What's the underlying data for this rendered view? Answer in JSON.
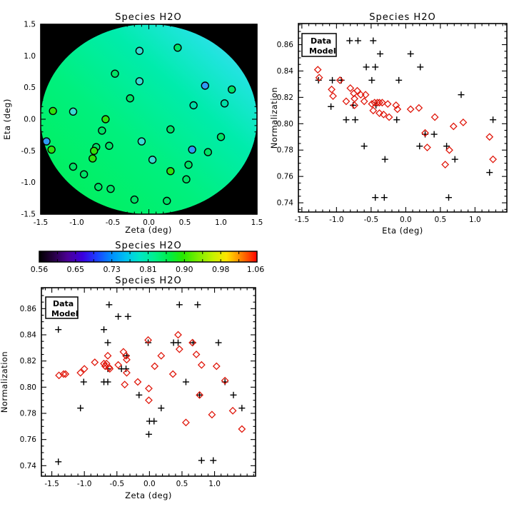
{
  "page": {
    "background": "#ffffff",
    "frame_color": "#000000"
  },
  "palette": {
    "g": "#00E366",
    "b": "#2FE10E",
    "t": "#00DFA8",
    "c": "#3ADBD2",
    "u": "#2E9CF5"
  },
  "chart_data": [
    {
      "type": "scatter",
      "subtype": "sky-map",
      "title": "Species H2O",
      "xlabel": "Zeta (deg)",
      "ylabel": "Eta (deg)",
      "xlim": [
        -1.5,
        1.5
      ],
      "ylim": [
        -1.5,
        1.5
      ],
      "xticks": [
        -1.5,
        -1.0,
        -0.5,
        0.0,
        0.5,
        1.0,
        1.5
      ],
      "yticks": [
        -1.5,
        -1.0,
        -0.5,
        0.0,
        0.5,
        1.0,
        1.5
      ],
      "xtick_labels": [
        "-1.5",
        "-1.0",
        "-0.5",
        "0.0",
        "0.5",
        "1.0",
        "1.5"
      ],
      "ytick_labels": [
        "-1.5",
        "-1.0",
        "-0.5",
        "0.0",
        "0.5",
        "1.0",
        "1.5"
      ],
      "minor_step": 0.1,
      "grid": false,
      "background": "#000000",
      "disk": {
        "cx": 0.0,
        "cy": 0.0,
        "radius": 1.5,
        "gradient_direction": "to-top-right",
        "gradient": [
          {
            "o": 0.0,
            "c": "#02EF52"
          },
          {
            "o": 0.4,
            "c": "#00F07E"
          },
          {
            "o": 0.65,
            "c": "#00ECAC"
          },
          {
            "o": 0.82,
            "c": "#1FE4DC"
          },
          {
            "o": 0.93,
            "c": "#45D9EE"
          },
          {
            "o": 1.0,
            "c": "#5FD0F8"
          }
        ]
      },
      "points": [
        [
          -0.13,
          1.08,
          "c"
        ],
        [
          0.4,
          1.13,
          "g"
        ],
        [
          -0.47,
          0.72,
          "g"
        ],
        [
          -0.13,
          0.6,
          "c"
        ],
        [
          -0.26,
          0.33,
          "g"
        ],
        [
          0.78,
          0.53,
          "u"
        ],
        [
          1.15,
          0.47,
          "g"
        ],
        [
          0.62,
          0.22,
          "t"
        ],
        [
          1.05,
          0.25,
          "t"
        ],
        [
          -1.33,
          0.13,
          "b"
        ],
        [
          -1.05,
          0.12,
          "c"
        ],
        [
          -0.6,
          0.0,
          "b"
        ],
        [
          -0.65,
          -0.18,
          "g"
        ],
        [
          0.3,
          -0.16,
          "g"
        ],
        [
          1.0,
          -0.28,
          "g"
        ],
        [
          -1.42,
          -0.35,
          "u"
        ],
        [
          -0.1,
          -0.35,
          "c"
        ],
        [
          -0.55,
          -0.42,
          "g"
        ],
        [
          -0.73,
          -0.44,
          "g"
        ],
        [
          -0.76,
          -0.5,
          "b"
        ],
        [
          -1.35,
          -0.48,
          "b"
        ],
        [
          0.6,
          -0.48,
          "u"
        ],
        [
          0.82,
          -0.52,
          "g"
        ],
        [
          -0.78,
          -0.62,
          "b"
        ],
        [
          0.05,
          -0.64,
          "c"
        ],
        [
          -1.05,
          -0.75,
          "g"
        ],
        [
          0.55,
          -0.72,
          "g"
        ],
        [
          -0.9,
          -0.87,
          "g"
        ],
        [
          0.3,
          -0.82,
          "b"
        ],
        [
          0.52,
          -0.95,
          "g"
        ],
        [
          -0.7,
          -1.07,
          "g"
        ],
        [
          -0.53,
          -1.1,
          "g"
        ],
        [
          -0.2,
          -1.27,
          "g"
        ],
        [
          0.25,
          -1.29,
          "g"
        ]
      ]
    },
    {
      "type": "scatter",
      "title": "Species H2O",
      "xlabel": "Eta (deg)",
      "ylabel": "Normalization",
      "xlim": [
        -1.55,
        1.46
      ],
      "ylim": [
        0.733,
        0.876
      ],
      "xticks": [
        -1.5,
        -1.0,
        -0.5,
        0.0,
        0.5,
        1.0
      ],
      "yticks": [
        0.74,
        0.76,
        0.78,
        0.8,
        0.82,
        0.84,
        0.86
      ],
      "xtick_labels": [
        "-1.5",
        "-1.0",
        "-0.5",
        "0.0",
        "0.5",
        "1.0"
      ],
      "ytick_labels": [
        "0.74",
        "0.76",
        "0.78",
        "0.80",
        "0.82",
        "0.84",
        "0.86"
      ],
      "xminor_step": 0.1,
      "yminor_step": 0.005,
      "grid": false,
      "legend": {
        "position": "top-left"
      },
      "series": [
        {
          "name": "Data",
          "marker": "plus",
          "color": "#000000",
          "points": [
            [
              -0.81,
              0.863
            ],
            [
              -0.69,
              0.863
            ],
            [
              -0.47,
              0.863
            ],
            [
              -0.37,
              0.853
            ],
            [
              0.07,
              0.853
            ],
            [
              -0.57,
              0.843
            ],
            [
              -0.44,
              0.843
            ],
            [
              0.21,
              0.843
            ],
            [
              -1.26,
              0.833
            ],
            [
              -1.06,
              0.833
            ],
            [
              -0.93,
              0.833
            ],
            [
              -0.49,
              0.833
            ],
            [
              -0.1,
              0.833
            ],
            [
              -1.08,
              0.813
            ],
            [
              -0.76,
              0.814
            ],
            [
              -0.43,
              0.814
            ],
            [
              0.8,
              0.822
            ],
            [
              -0.86,
              0.803
            ],
            [
              -0.73,
              0.803
            ],
            [
              -0.13,
              0.803
            ],
            [
              1.26,
              0.803
            ],
            [
              0.28,
              0.792
            ],
            [
              0.41,
              0.792
            ],
            [
              -0.6,
              0.783
            ],
            [
              0.2,
              0.783
            ],
            [
              0.59,
              0.783
            ],
            [
              -0.3,
              0.773
            ],
            [
              0.71,
              0.773
            ],
            [
              1.21,
              0.763
            ],
            [
              -0.44,
              0.744
            ],
            [
              -0.31,
              0.744
            ],
            [
              0.62,
              0.744
            ]
          ]
        },
        {
          "name": "Model",
          "marker": "diamond",
          "color": "#E0180C",
          "points": [
            [
              -1.27,
              0.841
            ],
            [
              -1.25,
              0.835
            ],
            [
              -1.07,
              0.826
            ],
            [
              -1.05,
              0.821
            ],
            [
              -0.95,
              0.833
            ],
            [
              -0.86,
              0.817
            ],
            [
              -0.8,
              0.827
            ],
            [
              -0.75,
              0.823
            ],
            [
              -0.74,
              0.819
            ],
            [
              -0.7,
              0.825
            ],
            [
              -0.74,
              0.814
            ],
            [
              -0.65,
              0.822
            ],
            [
              -0.58,
              0.822
            ],
            [
              -0.6,
              0.817
            ],
            [
              -0.49,
              0.815
            ],
            [
              -0.45,
              0.816
            ],
            [
              -0.41,
              0.816
            ],
            [
              -0.38,
              0.816
            ],
            [
              -0.47,
              0.81
            ],
            [
              -0.34,
              0.816
            ],
            [
              -0.38,
              0.808
            ],
            [
              -0.26,
              0.815
            ],
            [
              -0.32,
              0.807
            ],
            [
              -0.24,
              0.805
            ],
            [
              -0.14,
              0.814
            ],
            [
              -0.12,
              0.811
            ],
            [
              0.07,
              0.811
            ],
            [
              0.19,
              0.812
            ],
            [
              0.28,
              0.793
            ],
            [
              0.31,
              0.782
            ],
            [
              0.42,
              0.805
            ],
            [
              0.57,
              0.769
            ],
            [
              0.63,
              0.78
            ],
            [
              0.69,
              0.798
            ],
            [
              0.83,
              0.801
            ],
            [
              1.21,
              0.79
            ],
            [
              1.26,
              0.773
            ]
          ]
        }
      ]
    },
    {
      "type": "colorbar",
      "title": "Species H2O",
      "tick_labels": [
        "0.56",
        "0.65",
        "0.73",
        "0.81",
        "0.90",
        "0.98",
        "1.06"
      ],
      "vmin": 0.56,
      "vmax": 1.06,
      "gradient": [
        {
          "o": 0.0,
          "c": "#000000"
        },
        {
          "o": 0.06,
          "c": "#23003C"
        },
        {
          "o": 0.13,
          "c": "#4B0096"
        },
        {
          "o": 0.2,
          "c": "#3A00E0"
        },
        {
          "o": 0.26,
          "c": "#1D3CFF"
        },
        {
          "o": 0.33,
          "c": "#008CFF"
        },
        {
          "o": 0.4,
          "c": "#00C4F0"
        },
        {
          "o": 0.46,
          "c": "#00E6C8"
        },
        {
          "o": 0.53,
          "c": "#00F08C"
        },
        {
          "o": 0.6,
          "c": "#00EE44"
        },
        {
          "o": 0.66,
          "c": "#28E800"
        },
        {
          "o": 0.73,
          "c": "#7CEE00"
        },
        {
          "o": 0.8,
          "c": "#C8F200"
        },
        {
          "o": 0.86,
          "c": "#FFE400"
        },
        {
          "o": 0.91,
          "c": "#FF9C00"
        },
        {
          "o": 0.96,
          "c": "#FF4A00"
        },
        {
          "o": 1.0,
          "c": "#FF0000"
        }
      ]
    },
    {
      "type": "scatter",
      "title": "Species H2O",
      "xlabel": "Zeta (deg)",
      "ylabel": "Normalization",
      "xlim": [
        -1.66,
        1.63
      ],
      "ylim": [
        0.732,
        0.876
      ],
      "xticks": [
        -1.5,
        -1.0,
        -0.5,
        0.0,
        0.5,
        1.0
      ],
      "yticks": [
        0.74,
        0.76,
        0.78,
        0.8,
        0.82,
        0.84,
        0.86
      ],
      "xtick_labels": [
        "-1.5",
        "-1.0",
        "-0.5",
        "0.0",
        "0.5",
        "1.0"
      ],
      "ytick_labels": [
        "0.74",
        "0.76",
        "0.78",
        "0.80",
        "0.82",
        "0.84",
        "0.86"
      ],
      "xminor_step": 0.1,
      "yminor_step": 0.005,
      "grid": false,
      "legend": {
        "position": "top-left"
      },
      "series": [
        {
          "name": "Data",
          "marker": "plus",
          "color": "#000000",
          "points": [
            [
              -1.4,
              0.844
            ],
            [
              -1.4,
              0.743
            ],
            [
              -1.06,
              0.784
            ],
            [
              -1.01,
              0.804
            ],
            [
              -0.7,
              0.804
            ],
            [
              -0.7,
              0.844
            ],
            [
              -0.62,
              0.863
            ],
            [
              -0.64,
              0.834
            ],
            [
              -0.64,
              0.814
            ],
            [
              -0.64,
              0.804
            ],
            [
              -0.48,
              0.854
            ],
            [
              -0.33,
              0.854
            ],
            [
              -0.43,
              0.814
            ],
            [
              -0.36,
              0.814
            ],
            [
              -0.35,
              0.824
            ],
            [
              -0.16,
              0.794
            ],
            [
              -0.02,
              0.834
            ],
            [
              0.0,
              0.774
            ],
            [
              0.07,
              0.774
            ],
            [
              -0.01,
              0.764
            ],
            [
              0.18,
              0.784
            ],
            [
              0.37,
              0.834
            ],
            [
              0.44,
              0.834
            ],
            [
              0.46,
              0.863
            ],
            [
              0.74,
              0.863
            ],
            [
              0.67,
              0.834
            ],
            [
              0.56,
              0.804
            ],
            [
              0.77,
              0.794
            ],
            [
              0.8,
              0.744
            ],
            [
              0.98,
              0.744
            ],
            [
              1.06,
              0.834
            ],
            [
              1.16,
              0.804
            ],
            [
              1.29,
              0.794
            ],
            [
              1.42,
              0.784
            ]
          ]
        },
        {
          "name": "Model",
          "marker": "diamond",
          "color": "#E0180C",
          "points": [
            [
              -1.39,
              0.809
            ],
            [
              -1.32,
              0.81
            ],
            [
              -1.29,
              0.81
            ],
            [
              -1.06,
              0.811
            ],
            [
              -1.0,
              0.814
            ],
            [
              -0.84,
              0.819
            ],
            [
              -0.7,
              0.818
            ],
            [
              -0.68,
              0.816
            ],
            [
              -0.66,
              0.818
            ],
            [
              -0.64,
              0.824
            ],
            [
              -0.62,
              0.815
            ],
            [
              -0.61,
              0.814
            ],
            [
              -0.48,
              0.817
            ],
            [
              -0.4,
              0.827
            ],
            [
              -0.36,
              0.824
            ],
            [
              -0.35,
              0.821
            ],
            [
              -0.35,
              0.811
            ],
            [
              -0.38,
              0.802
            ],
            [
              -0.18,
              0.804
            ],
            [
              -0.02,
              0.836
            ],
            [
              -0.01,
              0.799
            ],
            [
              -0.01,
              0.79
            ],
            [
              0.08,
              0.816
            ],
            [
              0.18,
              0.824
            ],
            [
              0.36,
              0.81
            ],
            [
              0.44,
              0.84
            ],
            [
              0.46,
              0.829
            ],
            [
              0.56,
              0.773
            ],
            [
              0.66,
              0.834
            ],
            [
              0.72,
              0.825
            ],
            [
              0.8,
              0.817
            ],
            [
              0.77,
              0.794
            ],
            [
              0.96,
              0.779
            ],
            [
              1.03,
              0.816
            ],
            [
              1.16,
              0.805
            ],
            [
              1.28,
              0.782
            ],
            [
              1.42,
              0.768
            ]
          ]
        }
      ]
    }
  ]
}
